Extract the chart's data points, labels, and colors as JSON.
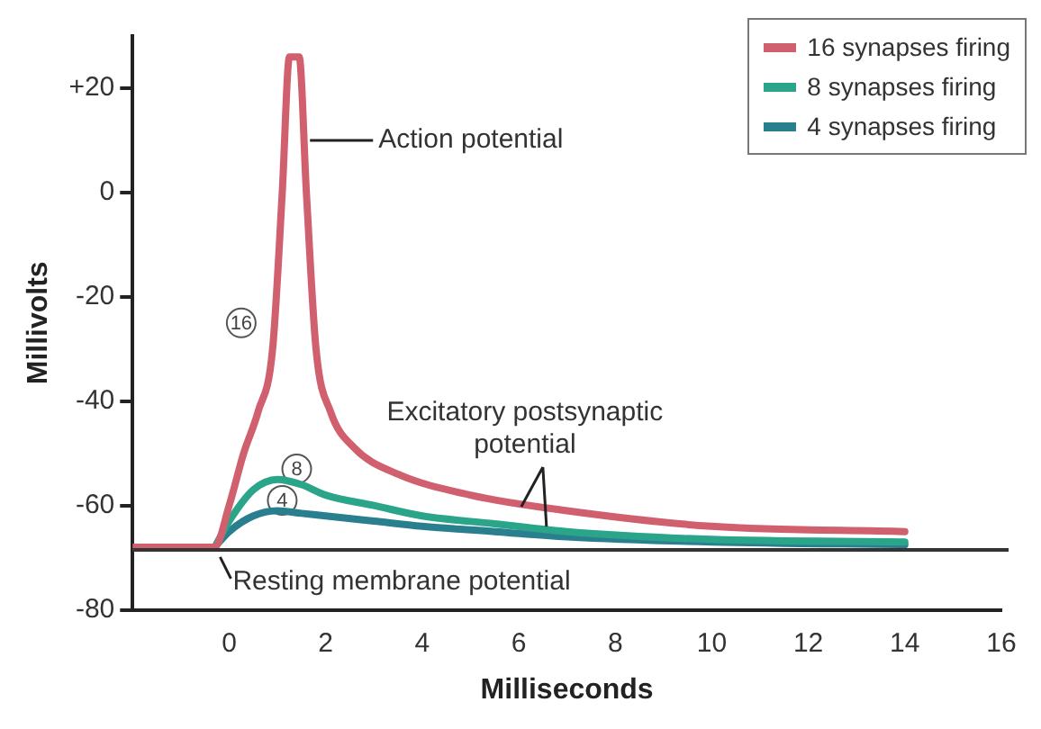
{
  "chart_data": {
    "type": "line",
    "xlabel": "Milliseconds",
    "ylabel": "Millivolts",
    "xlim": [
      -2,
      16
    ],
    "xticks": [
      0,
      2,
      4,
      6,
      8,
      10,
      12,
      14,
      16
    ],
    "ylim": [
      -80,
      30
    ],
    "yticks": [
      -80,
      -60,
      -40,
      -20,
      0,
      {
        "value": 20,
        "label": "+20"
      }
    ],
    "grid": false,
    "legend": "top right",
    "marker": "none",
    "line_style": "solid",
    "series": [
      {
        "name": "16 synapses firing",
        "color": "#d0606e",
        "x": [
          -2,
          -0.3,
          0,
          0.3,
          0.6,
          0.9,
          1.1,
          1.25,
          1.45,
          1.6,
          1.8,
          2.1,
          2.6,
          3.5,
          5,
          7,
          10,
          14
        ],
        "values": [
          -68,
          -68,
          -60,
          -50,
          -42,
          -30,
          0,
          26,
          26,
          0,
          -30,
          -42,
          -49,
          -54,
          -58,
          -61,
          -64,
          -65
        ]
      },
      {
        "name": "8 synapses firing",
        "color": "#2aa58a",
        "x": [
          -0.3,
          0,
          0.5,
          1,
          1.5,
          2,
          3,
          4,
          5.5,
          7,
          10,
          14
        ],
        "values": [
          -68,
          -63,
          -57,
          -55,
          -56,
          -58,
          -60,
          -62,
          -63.5,
          -65,
          -66.5,
          -67
        ]
      },
      {
        "name": "4 synapses firing",
        "color": "#2a7f8f",
        "x": [
          -0.3,
          0,
          0.5,
          1,
          1.5,
          2,
          3,
          4,
          5.5,
          7,
          10,
          14
        ],
        "values": [
          -68,
          -65,
          -62,
          -61,
          -61.5,
          -62,
          -63,
          -64,
          -65,
          -66,
          -67,
          -67.5
        ]
      }
    ],
    "ref_lines": [
      {
        "axis": "y",
        "value": -68.5,
        "color": "#333333"
      }
    ],
    "annotations": [
      {
        "text": "Action potential",
        "x": 1.6,
        "y": 10
      },
      {
        "text": "Excitatory postsynaptic potential",
        "x": 6.5,
        "y": -63
      },
      {
        "text": "Resting membrane potential",
        "x": -0.3,
        "y": -68.5
      },
      {
        "text": "16",
        "x": 0.25,
        "y": -25
      },
      {
        "text": "8",
        "x": 1.4,
        "y": -53
      },
      {
        "text": "4",
        "x": 1.1,
        "y": -59
      }
    ]
  }
}
